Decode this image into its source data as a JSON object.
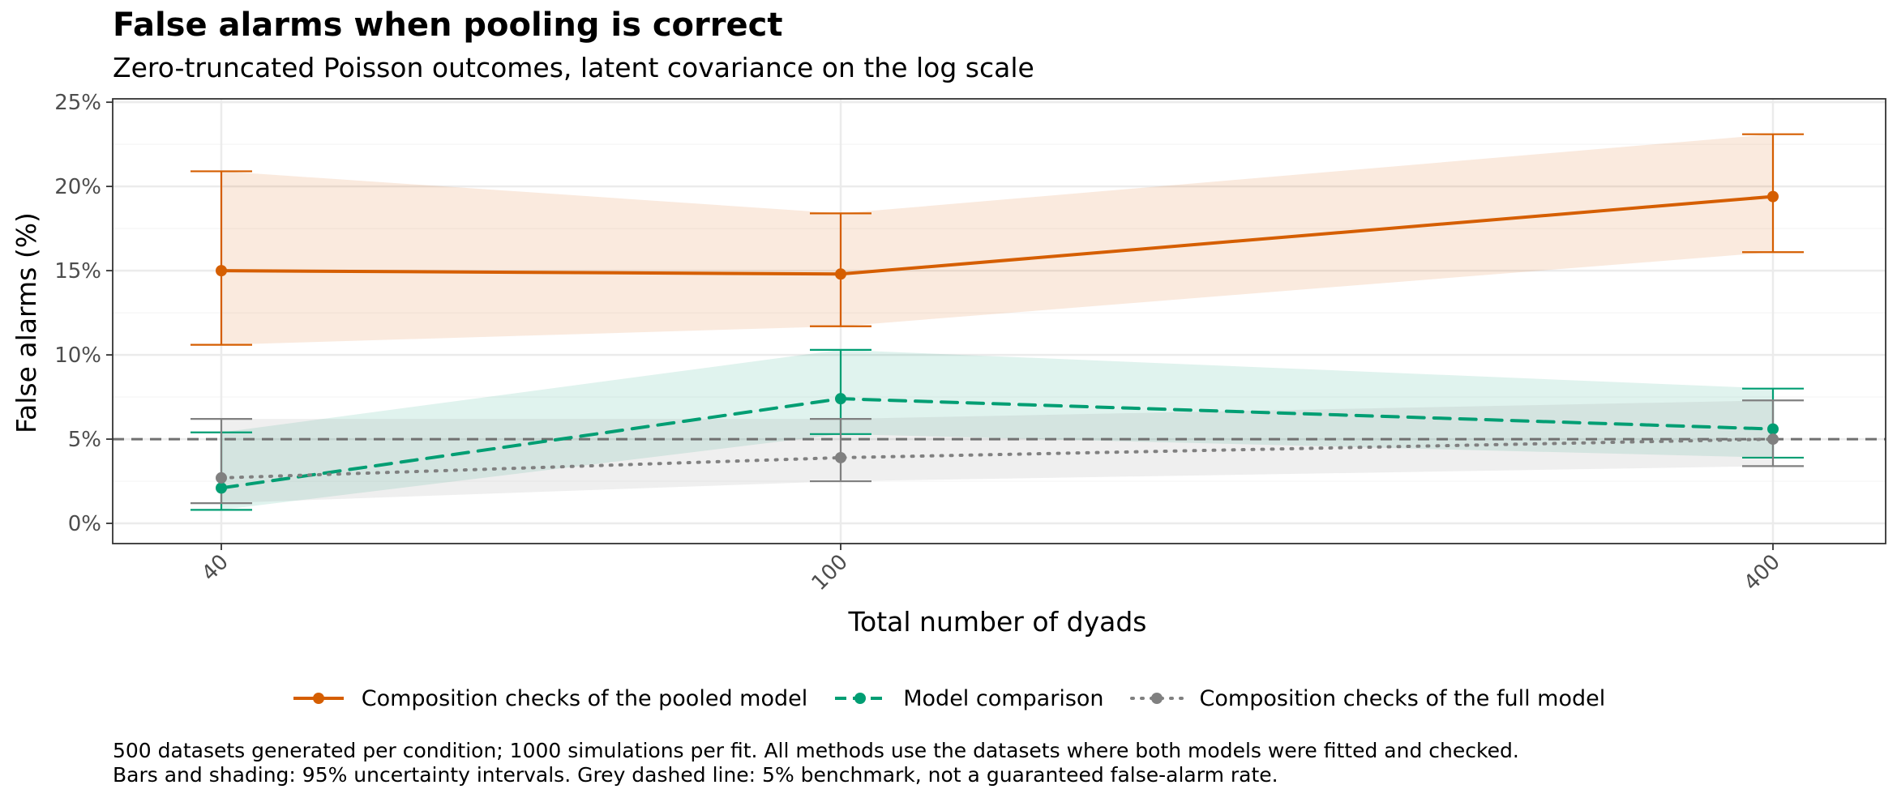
{
  "title": "False alarms when pooling is correct",
  "subtitle": "Zero-truncated Poisson outcomes, latent covariance on the log scale",
  "caption_line1": "500 datasets generated per condition; 1000 simulations per fit. All methods use the datasets where both models were fitted and checked.",
  "caption_line2": "Bars and shading: 95% uncertainty intervals. Grey dashed line: 5% benchmark, not a guaranteed false-alarm rate.",
  "colors": {
    "pooled": "#D55E00",
    "comparison": "#009E73",
    "full": "#808080",
    "benchmark": "#707070",
    "grid": "#EBEBEB",
    "panel_border": "#333333"
  },
  "chart_data": {
    "type": "line",
    "xlabel": "Total number of dyads",
    "ylabel": "False alarms (%)",
    "x_categories": [
      "40",
      "100",
      "400"
    ],
    "x_scale": "log",
    "ylim": [
      -1.2,
      25.2
    ],
    "y_ticks": [
      0,
      5,
      10,
      15,
      20,
      25
    ],
    "y_tick_labels": [
      "0%",
      "5%",
      "10%",
      "15%",
      "20%",
      "25%"
    ],
    "benchmark": 5,
    "grid": true,
    "legend_position": "bottom",
    "series": [
      {
        "name": "Composition checks of the pooled model",
        "color_key": "pooled",
        "linestyle": "solid",
        "values": [
          15.0,
          14.8,
          19.4
        ],
        "lower": [
          10.6,
          11.7,
          16.1
        ],
        "upper": [
          20.9,
          18.4,
          23.1
        ]
      },
      {
        "name": "Model comparison",
        "color_key": "comparison",
        "linestyle": "dashed",
        "values": [
          2.1,
          7.4,
          5.6
        ],
        "lower": [
          0.8,
          5.3,
          3.9
        ],
        "upper": [
          5.4,
          10.3,
          8.0
        ]
      },
      {
        "name": "Composition checks of the full model",
        "color_key": "full",
        "linestyle": "dotted",
        "values": [
          2.7,
          3.9,
          5.0
        ],
        "lower": [
          1.2,
          2.5,
          3.4
        ],
        "upper": [
          6.2,
          6.2,
          7.3
        ]
      }
    ]
  }
}
